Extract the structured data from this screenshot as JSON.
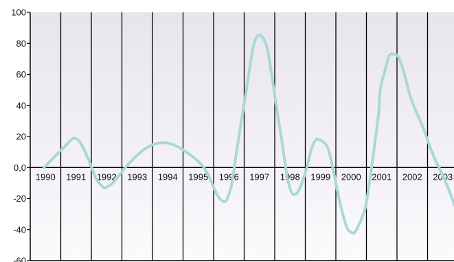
{
  "chart_data": {
    "type": "line",
    "title": "",
    "xlabel": "",
    "ylabel": "",
    "x_categories": [
      "1990",
      "1991",
      "1992",
      "1993",
      "1994",
      "1995",
      "1996",
      "1997",
      "1998",
      "1999",
      "2000",
      "2001",
      "2002",
      "2003"
    ],
    "y_ticks": [
      "100",
      "80",
      "60",
      "40",
      "20",
      "0,0",
      "-20",
      "-40",
      "-60"
    ],
    "ylim": [
      -60,
      100
    ],
    "grid": "vertical",
    "line_color": "#a9d8d6",
    "series": [
      {
        "x": [
          1990.0,
          1990.25,
          1990.5,
          1990.75,
          1990.9,
          1991.0,
          1991.15,
          1991.3,
          1991.5,
          1991.7,
          1991.9,
          1992.0,
          1992.25,
          1992.5,
          1992.75,
          1993.0,
          1993.3,
          1993.6,
          1993.9,
          1994.2,
          1994.5,
          1994.8,
          1995.1,
          1995.3,
          1995.45,
          1995.6,
          1995.75,
          1995.9,
          1996.0,
          1996.15,
          1996.3,
          1996.5,
          1996.7,
          1996.85,
          1997.0,
          1997.15,
          1997.3,
          1997.45,
          1997.6,
          1997.8,
          1997.95,
          1998.1,
          1998.25,
          1998.4,
          1998.6,
          1998.75,
          1998.9,
          1999.0,
          1999.1,
          1999.3,
          1999.5,
          1999.6,
          1999.75,
          1999.9,
          2000.0,
          2000.15,
          2000.3,
          2000.5,
          2000.65,
          2000.8,
          2000.95,
          2001.0,
          2001.15,
          2001.3,
          2001.45,
          2001.6,
          2001.75,
          2001.9,
          2002.0,
          2002.2,
          2002.4,
          2002.6,
          2002.8,
          2003.0,
          2003.2,
          2003.45,
          2003.65
        ],
        "y": [
          0,
          5,
          10,
          15,
          18,
          19,
          17,
          12,
          3,
          -7,
          -12,
          -13,
          -10,
          -4,
          2,
          7,
          12,
          15,
          16,
          15,
          12,
          8,
          3,
          -2,
          -8,
          -15,
          -20,
          -22,
          -20,
          -10,
          10,
          35,
          60,
          78,
          85,
          84,
          77,
          60,
          40,
          15,
          -5,
          -16,
          -17,
          -12,
          0,
          12,
          18,
          18,
          17,
          12,
          -5,
          -15,
          -28,
          -38,
          -41,
          -42,
          -37,
          -27,
          -10,
          12,
          35,
          50,
          62,
          72,
          73,
          71,
          63,
          52,
          45,
          35,
          26,
          15,
          5,
          -3,
          -12,
          -25,
          -35
        ]
      }
    ]
  }
}
